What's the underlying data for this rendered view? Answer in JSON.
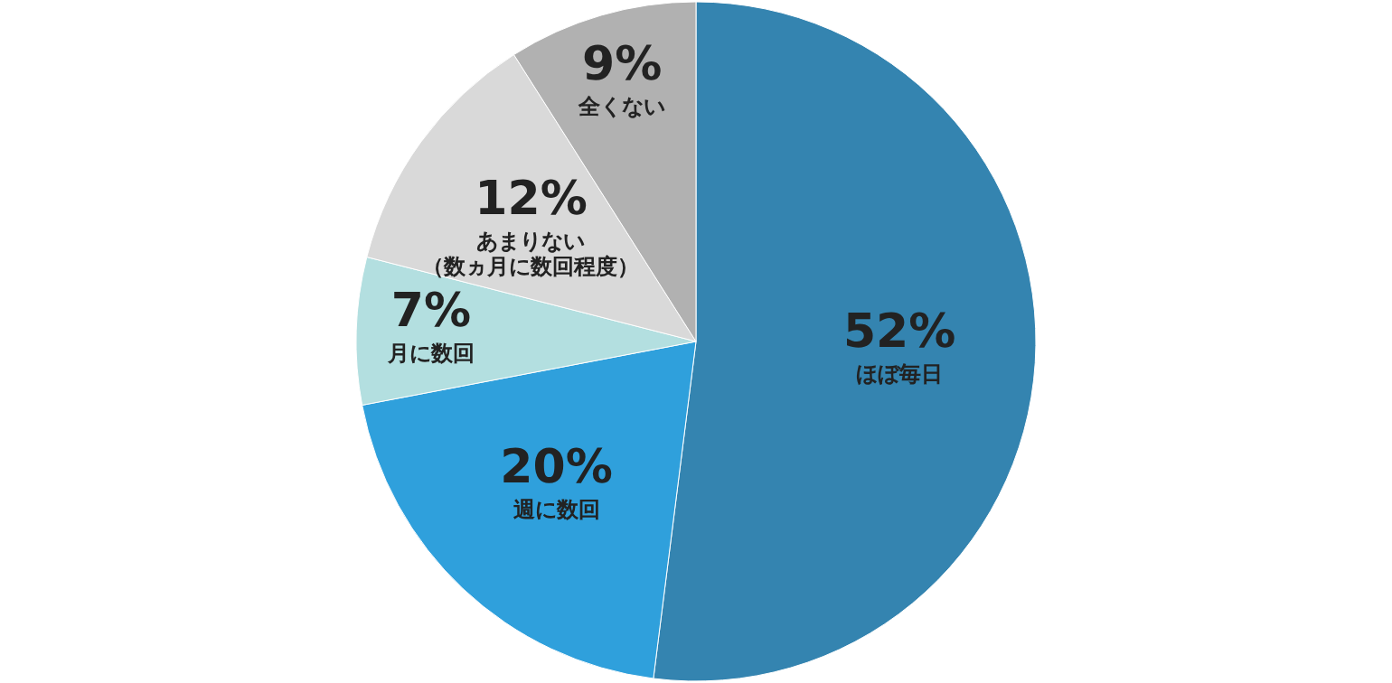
{
  "chart_data": {
    "type": "pie",
    "categories": [
      "ほぼ毎日",
      "週に数回",
      "月に数回",
      "あまりない（数ヵ月に数回程度）",
      "全くない"
    ],
    "values": [
      52,
      20,
      7,
      12,
      9
    ],
    "value_labels": [
      "52%",
      "20%",
      "7%",
      "12%",
      "9%"
    ],
    "colors": [
      "#3484b0",
      "#2fa0dc",
      "#b3dfe0",
      "#d9d9d9",
      "#b1b1b1"
    ],
    "legend": false
  }
}
